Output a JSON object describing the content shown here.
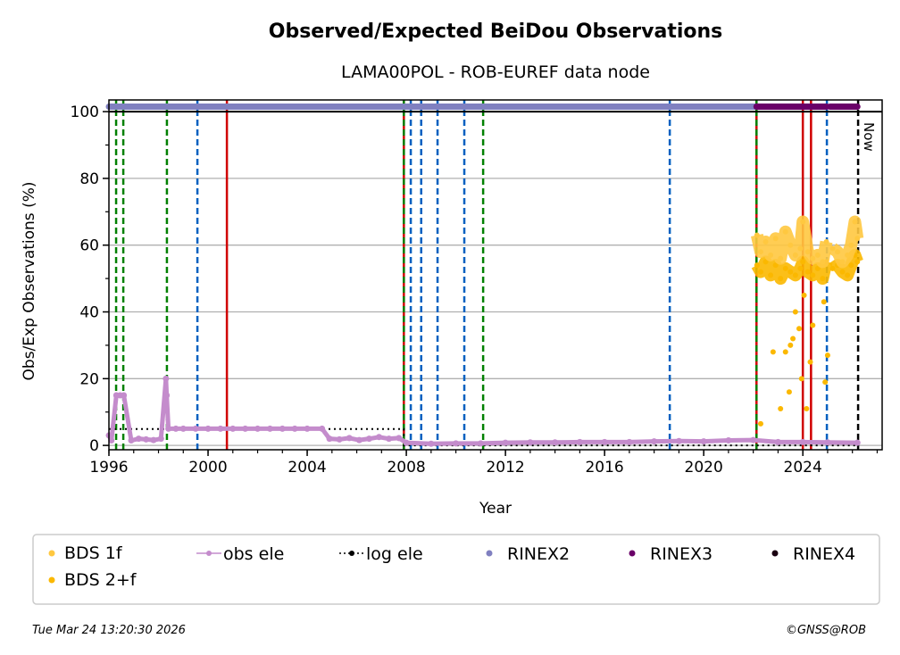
{
  "chart_data": {
    "type": "scatter",
    "title": "Observed/Expected BeiDou Observations",
    "subtitle": "LAMA00POL - ROB-EUREF data node",
    "xlabel": "Year",
    "ylabel": "Obs/Exp Observations (%)",
    "xlim": [
      1996,
      2027.2
    ],
    "ylim": [
      -1.3,
      103.5
    ],
    "xticks": [
      1996,
      2000,
      2004,
      2008,
      2012,
      2016,
      2020,
      2024
    ],
    "xtick_labels": [
      "1996",
      "2000",
      "2004",
      "2008",
      "2012",
      "2016",
      "2020",
      "2024"
    ],
    "yticks": [
      0,
      20,
      40,
      60,
      80,
      100
    ],
    "ytick_labels": [
      "0",
      "20",
      "40",
      "60",
      "80",
      "100"
    ],
    "grid": true,
    "now_label": "Now",
    "now_year": 2026.23,
    "vlines": [
      {
        "x": 1996.29,
        "style": "dashed",
        "color": "#008000"
      },
      {
        "x": 1996.58,
        "style": "dashed",
        "color": "#008000"
      },
      {
        "x": 1998.34,
        "style": "dashed",
        "color": "#008000"
      },
      {
        "x": 1999.57,
        "style": "dashed",
        "color": "#0060c0"
      },
      {
        "x": 2000.76,
        "style": "solid",
        "color": "#d00000"
      },
      {
        "x": 2007.9,
        "style": "solid",
        "color": "#d00000"
      },
      {
        "x": 2007.9,
        "style": "dashed",
        "color": "#008000"
      },
      {
        "x": 2008.18,
        "style": "dashed",
        "color": "#0060c0"
      },
      {
        "x": 2008.6,
        "style": "dashed",
        "color": "#0060c0"
      },
      {
        "x": 2009.26,
        "style": "dashed",
        "color": "#0060c0"
      },
      {
        "x": 2010.34,
        "style": "dashed",
        "color": "#0060c0"
      },
      {
        "x": 2011.1,
        "style": "dashed",
        "color": "#008000"
      },
      {
        "x": 2018.63,
        "style": "dashed",
        "color": "#0060c0"
      },
      {
        "x": 2022.13,
        "style": "solid",
        "color": "#d00000"
      },
      {
        "x": 2022.13,
        "style": "dashed",
        "color": "#008000"
      },
      {
        "x": 2024.0,
        "style": "solid",
        "color": "#d00000"
      },
      {
        "x": 2024.33,
        "style": "solid",
        "color": "#d00000"
      },
      {
        "x": 2024.97,
        "style": "dashed",
        "color": "#0060c0"
      },
      {
        "x": 2026.23,
        "style": "dashed",
        "color": "#000000"
      }
    ],
    "series": [
      {
        "name": "BDS 1f",
        "color": "#ffc840",
        "x": [
          2022.15,
          2022.3,
          2022.5,
          2022.7,
          2022.9,
          2023.1,
          2023.3,
          2023.5,
          2023.7,
          2023.9,
          2024.0,
          2024.2,
          2024.4,
          2024.6,
          2024.8,
          2024.95,
          2025.2,
          2025.4,
          2025.6,
          2025.8,
          2025.95,
          2026.1,
          2026.2
        ],
        "y": [
          63,
          58,
          61,
          57,
          62,
          56,
          64,
          60,
          57,
          59,
          67,
          58,
          56,
          57,
          55,
          61,
          59,
          58,
          55,
          57,
          60,
          67,
          62
        ]
      },
      {
        "name": "BDS 2+f",
        "color": "#fbb800",
        "x": [
          2022.15,
          2022.3,
          2022.5,
          2022.7,
          2022.9,
          2023.1,
          2023.3,
          2023.5,
          2023.7,
          2023.9,
          2024.0,
          2024.2,
          2024.4,
          2024.6,
          2024.8,
          2024.95,
          2025.2,
          2025.4,
          2025.6,
          2025.8,
          2025.95,
          2026.1,
          2026.2,
          2022.3,
          2022.8,
          2023.1,
          2023.3,
          2023.45,
          2023.5,
          2023.6,
          2023.7,
          2023.85,
          2023.95,
          2024.05,
          2024.15,
          2024.3,
          2024.4,
          2024.85,
          2024.9,
          2025.0
        ],
        "y": [
          54,
          52,
          55,
          51,
          54,
          50,
          53,
          52,
          51,
          53,
          55,
          52,
          51,
          53,
          50,
          55,
          53,
          54,
          52,
          51,
          54,
          57,
          55,
          6.5,
          28,
          11,
          28,
          16,
          30,
          32,
          40,
          35,
          20,
          45,
          11,
          25,
          36,
          43,
          19,
          27
        ]
      },
      {
        "name": "obs ele",
        "color": "#c48ccc",
        "x": [
          1996.0,
          1996.1,
          1996.3,
          1996.45,
          1996.6,
          1996.9,
          1997.2,
          1997.5,
          1997.8,
          1998.1,
          1998.3,
          1998.33,
          1998.4,
          1998.7,
          1999.0,
          1999.5,
          2000.0,
          2000.5,
          2001.0,
          2001.5,
          2002.0,
          2002.5,
          2003.0,
          2003.5,
          2004.0,
          2004.6,
          2004.9,
          2005.3,
          2005.7,
          2006.1,
          2006.5,
          2006.9,
          2007.3,
          2007.7,
          2008.0,
          2009,
          2010,
          2011,
          2012,
          2013,
          2014,
          2015,
          2016,
          2017,
          2018,
          2019,
          2020,
          2021,
          2022,
          2023,
          2024,
          2025,
          2026.2
        ],
        "y": [
          3,
          1.5,
          15,
          15,
          15,
          1.5,
          2,
          1.8,
          1.6,
          2,
          20,
          15,
          5,
          5,
          5,
          5,
          5,
          5,
          5,
          5,
          5,
          5,
          5,
          5,
          5,
          5,
          2,
          1.8,
          2.2,
          1.6,
          2,
          2.5,
          2,
          2.2,
          0.8,
          0.5,
          0.6,
          0.6,
          0.8,
          0.9,
          0.9,
          1.0,
          1.0,
          1.0,
          1.2,
          1.3,
          1.2,
          1.5,
          1.6,
          1.0,
          1.0,
          0.9,
          0.8
        ]
      },
      {
        "name": "log ele",
        "color": "#000000",
        "x": [
          1996,
          2007.9,
          2007.9,
          2026.2
        ],
        "y": [
          4.9,
          4.9,
          0,
          0
        ]
      },
      {
        "name": "RINEX2",
        "color": "#8080c0",
        "x": [
          1996,
          2022.13
        ],
        "y": [
          101.5,
          101.5
        ]
      },
      {
        "name": "RINEX3",
        "color": "#6a0068",
        "x": [
          2022.13,
          2024.97,
          2025.1,
          2026.2
        ],
        "y": [
          101.5,
          101.5,
          101.5,
          101.5
        ]
      },
      {
        "name": "RINEX4",
        "color": "#1a0010",
        "x": [],
        "y": []
      }
    ],
    "legend": {
      "placement": "bottom",
      "entries": [
        "BDS 1f",
        "obs ele",
        "log ele",
        "RINEX2",
        "RINEX3",
        "RINEX4",
        "BDS 2+f"
      ]
    }
  },
  "footer": {
    "timestamp": "Tue Mar 24 13:20:30 2026",
    "credit": "©GNSS@ROB"
  }
}
